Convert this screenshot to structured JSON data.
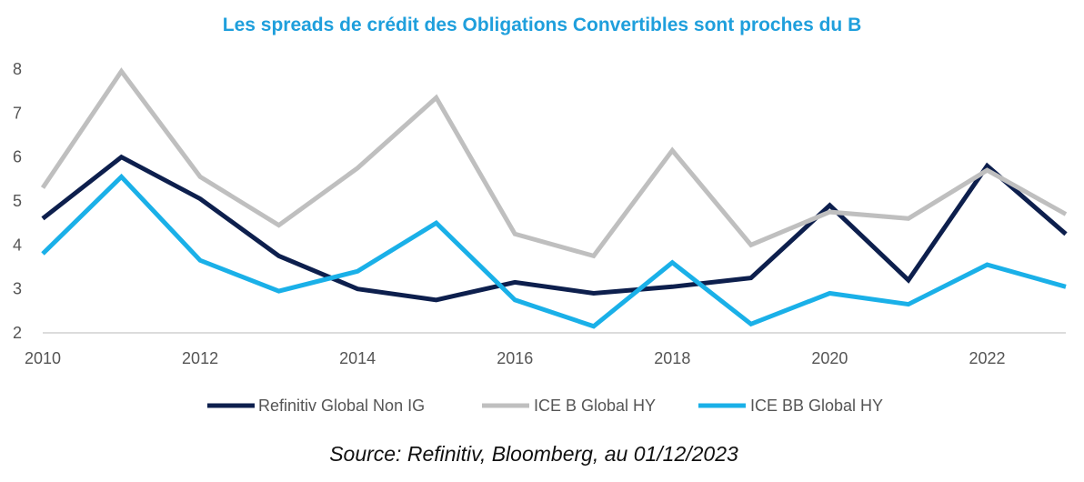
{
  "chart_data": {
    "type": "line",
    "title": "Les spreads de crédit des Obligations Convertibles sont proches du B",
    "xlabel": "",
    "ylabel": "",
    "x": [
      2010,
      2011,
      2012,
      2013,
      2014,
      2015,
      2016,
      2017,
      2018,
      2019,
      2020,
      2021,
      2022,
      2023
    ],
    "x_tick_labels": [
      "2010",
      "2012",
      "2014",
      "2016",
      "2018",
      "2020",
      "2022"
    ],
    "y_tick_labels": [
      "2",
      "3",
      "4",
      "5",
      "6",
      "7",
      "8"
    ],
    "xlim": [
      2010,
      2023
    ],
    "ylim": [
      2,
      8
    ],
    "grid": false,
    "legend_position": "bottom",
    "series": [
      {
        "name": "Refinitiv Global Non IG",
        "color": "#0d1f4d",
        "values": [
          4.6,
          6.0,
          5.05,
          3.75,
          3.0,
          2.75,
          3.15,
          2.9,
          3.05,
          3.25,
          4.9,
          3.2,
          5.8,
          4.25
        ]
      },
      {
        "name": "ICE B Global HY",
        "color": "#bfbfbf",
        "values": [
          5.3,
          7.95,
          5.55,
          4.45,
          5.75,
          7.35,
          4.25,
          3.75,
          6.15,
          4.0,
          4.75,
          4.6,
          5.7,
          4.7
        ]
      },
      {
        "name": "ICE BB Global HY",
        "color": "#1ab0e8",
        "values": [
          3.8,
          5.55,
          3.65,
          2.95,
          3.4,
          4.5,
          2.75,
          2.15,
          3.6,
          2.2,
          2.9,
          2.65,
          3.55,
          3.05
        ]
      }
    ],
    "source": "Source: Refinitiv, Bloomberg, au 01/12/2023"
  }
}
